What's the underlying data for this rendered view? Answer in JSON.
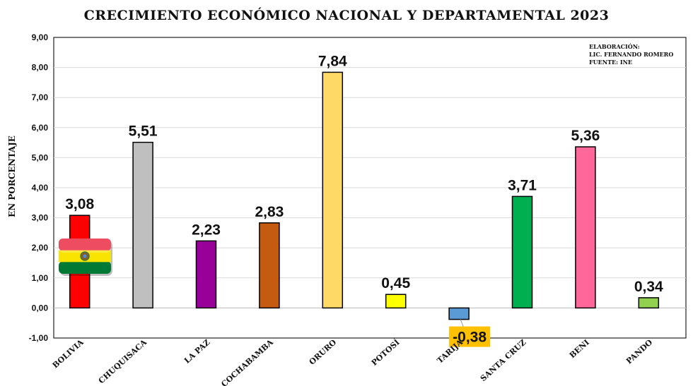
{
  "chart_data": {
    "type": "bar",
    "title": "CRECIMIENTO ECONÓMICO NACIONAL Y DEPARTAMENTAL 2023",
    "ylabel": "EN PORCENTAJE",
    "xlabel": "",
    "ylim": [
      -1,
      9
    ],
    "yticks": [
      "-1,00",
      "0,00",
      "1,00",
      "2,00",
      "3,00",
      "4,00",
      "5,00",
      "6,00",
      "7,00",
      "8,00",
      "9,00"
    ],
    "grid": true,
    "categories": [
      "BOLIVIA",
      "CHUQUISACA",
      "LA PAZ",
      "COCHABAMBA",
      "ORURO",
      "POTOSÍ",
      "TARIJA",
      "SANTA CRUZ",
      "BENI",
      "PANDO"
    ],
    "values": [
      3.08,
      5.51,
      2.23,
      2.83,
      7.84,
      0.45,
      -0.38,
      3.71,
      5.36,
      0.34
    ],
    "value_labels": [
      "3,08",
      "5,51",
      "2,23",
      "2,83",
      "7,84",
      "0,45",
      "-0,38",
      "3,71",
      "5,36",
      "0,34"
    ],
    "colors": [
      "#ff0000",
      "#bfbfbf",
      "#990099",
      "#c55a11",
      "#ffd966",
      "#ffff00",
      "#5b9bd5",
      "#00b050",
      "#ff6699",
      "#92d050"
    ],
    "highlight_label_color": "#ffc000",
    "flag_colors": [
      "#e8112d",
      "#f9e300",
      "#007934"
    ]
  },
  "source_note": [
    "ELABORACIÓN:",
    "LIC. FERNANDO ROMERO",
    "FUENTE: INE"
  ]
}
